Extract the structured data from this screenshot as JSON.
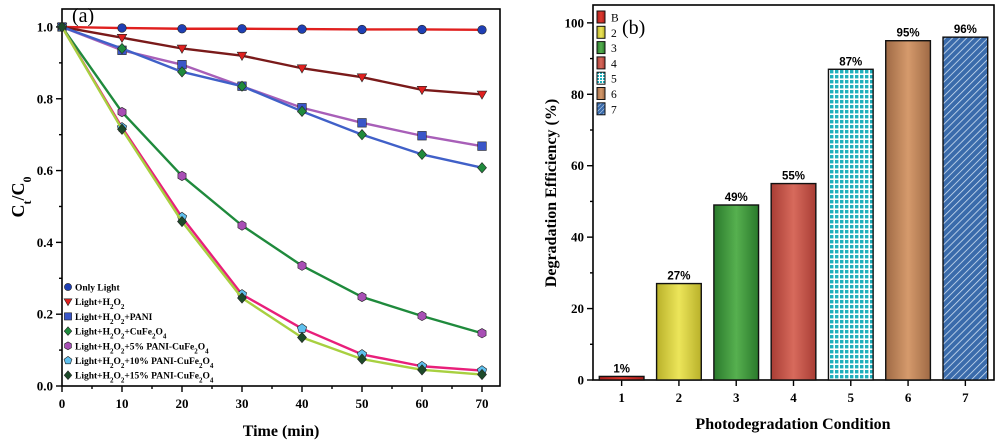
{
  "chart_data": [
    {
      "type": "line",
      "panel_label": "(a)",
      "xlabel": "Time (min)",
      "ylabel_main": "C",
      "ylabel_sub1": "t",
      "ylabel_mid": "/C",
      "ylabel_sub2": "0",
      "xlim": [
        0,
        73
      ],
      "ylim": [
        0,
        1.05
      ],
      "x_ticks": [
        0,
        10,
        20,
        30,
        40,
        50,
        60,
        70
      ],
      "y_ticks": [
        0.0,
        0.2,
        0.4,
        0.6,
        0.8,
        1.0
      ],
      "y_tick_labels": [
        "0.0",
        "0.2",
        "0.4",
        "0.6",
        "0.8",
        "1.0"
      ],
      "x": [
        0,
        10,
        20,
        30,
        40,
        50,
        60,
        70
      ],
      "legend_position": "bottom-left",
      "series": [
        {
          "name": "Only Light",
          "legend_parts": [
            [
              "Only Light",
              ""
            ]
          ],
          "color": "#1f3fb4",
          "line": "#e0201f",
          "marker": "circle",
          "values": [
            1.0,
            0.997,
            0.995,
            0.995,
            0.994,
            0.993,
            0.993,
            0.992
          ]
        },
        {
          "name": "Light+H2O2",
          "legend_parts": [
            [
              "Light+H",
              ""
            ],
            [
              "2",
              "sub"
            ],
            [
              "O",
              ""
            ],
            [
              "2",
              "sub"
            ]
          ],
          "color": "#e0201f",
          "line": "#7a1a1a",
          "marker": "triangle-down",
          "values": [
            1.0,
            0.97,
            0.94,
            0.92,
            0.885,
            0.86,
            0.825,
            0.812
          ]
        },
        {
          "name": "Light+H2O2+PANI",
          "legend_parts": [
            [
              "Light+H",
              ""
            ],
            [
              "2",
              "sub"
            ],
            [
              "O",
              ""
            ],
            [
              "2",
              "sub"
            ],
            [
              "+PANI",
              ""
            ]
          ],
          "color": "#3a56c8",
          "line": "#a85fb8",
          "marker": "square",
          "values": [
            1.0,
            0.935,
            0.895,
            0.835,
            0.775,
            0.733,
            0.697,
            0.668
          ]
        },
        {
          "name": "Light+H2O2+CuFe2O4",
          "legend_parts": [
            [
              "Light+H",
              ""
            ],
            [
              "2",
              "sub"
            ],
            [
              "O",
              ""
            ],
            [
              "2",
              "sub"
            ],
            [
              "+CuFe",
              ""
            ],
            [
              "2",
              "sub"
            ],
            [
              "O",
              ""
            ],
            [
              "4",
              "sub"
            ]
          ],
          "color": "#1f8a3c",
          "line": "#4060c8",
          "marker": "diamond",
          "values": [
            1.0,
            0.94,
            0.875,
            0.835,
            0.765,
            0.7,
            0.645,
            0.608
          ]
        },
        {
          "name": "Light+H2O2+5% PANI-CuFe2O4",
          "legend_parts": [
            [
              "Light+H",
              ""
            ],
            [
              "2",
              "sub"
            ],
            [
              "O",
              ""
            ],
            [
              "2",
              "sub"
            ],
            [
              "+5% PANI-CuFe",
              ""
            ],
            [
              "2",
              "sub"
            ],
            [
              "O",
              ""
            ],
            [
              "4",
              "sub"
            ]
          ],
          "color": "#a84fb5",
          "line": "#1f8a3c",
          "marker": "hexagon",
          "values": [
            1.0,
            0.763,
            0.585,
            0.447,
            0.335,
            0.248,
            0.195,
            0.147
          ]
        },
        {
          "name": "Light+H2O2+10% PANI-CuFe2O4",
          "legend_parts": [
            [
              "Light+H",
              ""
            ],
            [
              "2",
              "sub"
            ],
            [
              "O",
              ""
            ],
            [
              "2",
              "sub"
            ],
            [
              "+10% PANI-CuFe",
              ""
            ],
            [
              "2",
              "sub"
            ],
            [
              "O",
              ""
            ],
            [
              "4",
              "sub"
            ]
          ],
          "color": "#5fc0ee",
          "line": "#e81f7a",
          "marker": "pentagon",
          "values": [
            1.0,
            0.72,
            0.47,
            0.255,
            0.16,
            0.088,
            0.055,
            0.043
          ]
        },
        {
          "name": "Light+H2O2+15% PANI-CuFe2O4",
          "legend_parts": [
            [
              "Light+H",
              ""
            ],
            [
              "2",
              "sub"
            ],
            [
              "O",
              ""
            ],
            [
              "2",
              "sub"
            ],
            [
              "+15% PANI-CuFe",
              ""
            ],
            [
              "2",
              "sub"
            ],
            [
              "O",
              ""
            ],
            [
              "4",
              "sub"
            ]
          ],
          "color": "#1d4a2a",
          "line": "#a8d040",
          "marker": "diamond",
          "values": [
            1.0,
            0.715,
            0.458,
            0.245,
            0.135,
            0.075,
            0.045,
            0.032
          ]
        }
      ]
    },
    {
      "type": "bar",
      "panel_label": "(b)",
      "xlabel": "Photodegradation Condition",
      "ylabel": "Degradation Efficiency (%)",
      "ylim": [
        0,
        105
      ],
      "y_ticks": [
        0,
        20,
        40,
        60,
        80,
        100
      ],
      "categories": [
        "1",
        "2",
        "3",
        "4",
        "5",
        "6",
        "7"
      ],
      "values": [
        1,
        27,
        49,
        55,
        87,
        95,
        96
      ],
      "bar_labels": [
        "1%",
        "27%",
        "49%",
        "55%",
        "87%",
        "95%",
        "96%"
      ],
      "legend_entries": [
        "B",
        "2",
        "3",
        "4",
        "5",
        "6",
        "7"
      ],
      "legend_position": "top-left",
      "colors": [
        "#c8302a",
        "#d9d23a",
        "#3f9a3f",
        "#c9544a",
        "#2fbcc6",
        "#c07f54",
        "#3c6fae"
      ]
    }
  ]
}
